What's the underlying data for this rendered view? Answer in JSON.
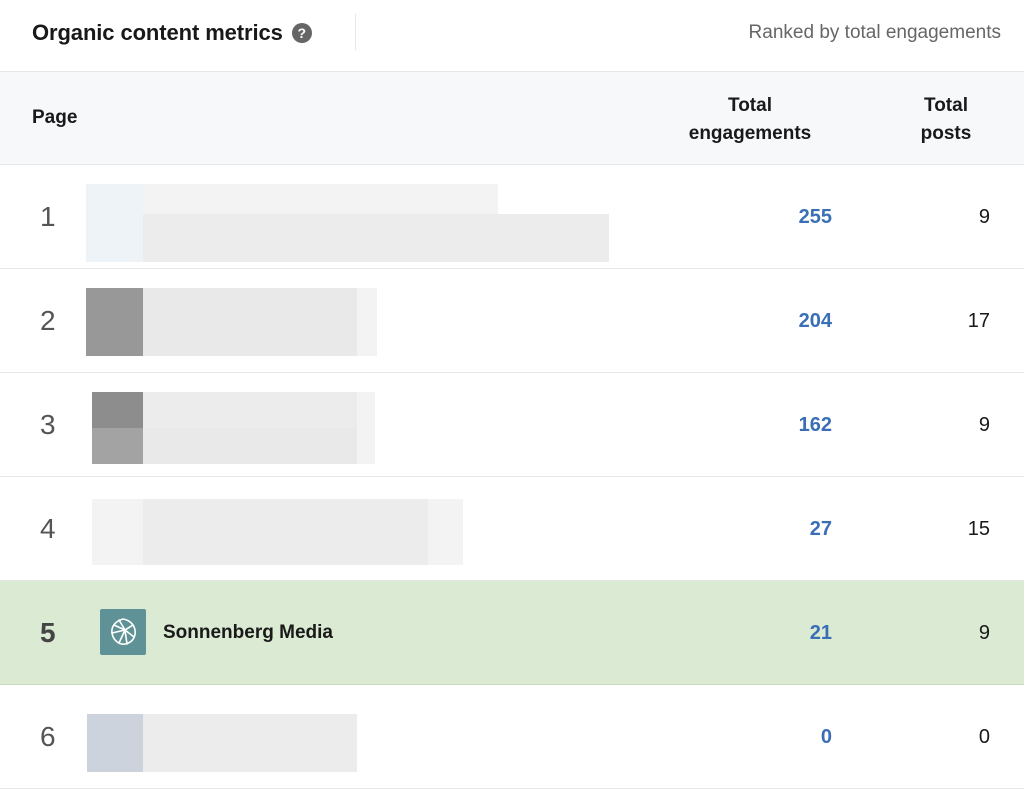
{
  "header": {
    "title": "Organic content metrics",
    "help_icon": "help-circle-icon",
    "ranked_label": "Ranked by total engagements"
  },
  "table": {
    "columns": {
      "page": "Page",
      "engagements": "Total engagements",
      "posts": "Total posts"
    },
    "rows": [
      {
        "rank": "1",
        "name": "",
        "engagements": "255",
        "posts": "9",
        "redacted": true
      },
      {
        "rank": "2",
        "name": "",
        "engagements": "204",
        "posts": "17",
        "redacted": true
      },
      {
        "rank": "3",
        "name": "",
        "engagements": "162",
        "posts": "9",
        "redacted": true
      },
      {
        "rank": "4",
        "name": "",
        "engagements": "27",
        "posts": "15",
        "redacted": true
      },
      {
        "rank": "5",
        "name": "Sonnenberg Media",
        "engagements": "21",
        "posts": "9",
        "highlighted": true,
        "logo_icon": "sonnenberg-logo-icon"
      },
      {
        "rank": "6",
        "name": "",
        "engagements": "0",
        "posts": "0",
        "redacted": true
      }
    ]
  },
  "colors": {
    "highlight_row": "#dbead3",
    "link_blue": "#3a6fb6",
    "logo_teal": "#5e9296"
  }
}
